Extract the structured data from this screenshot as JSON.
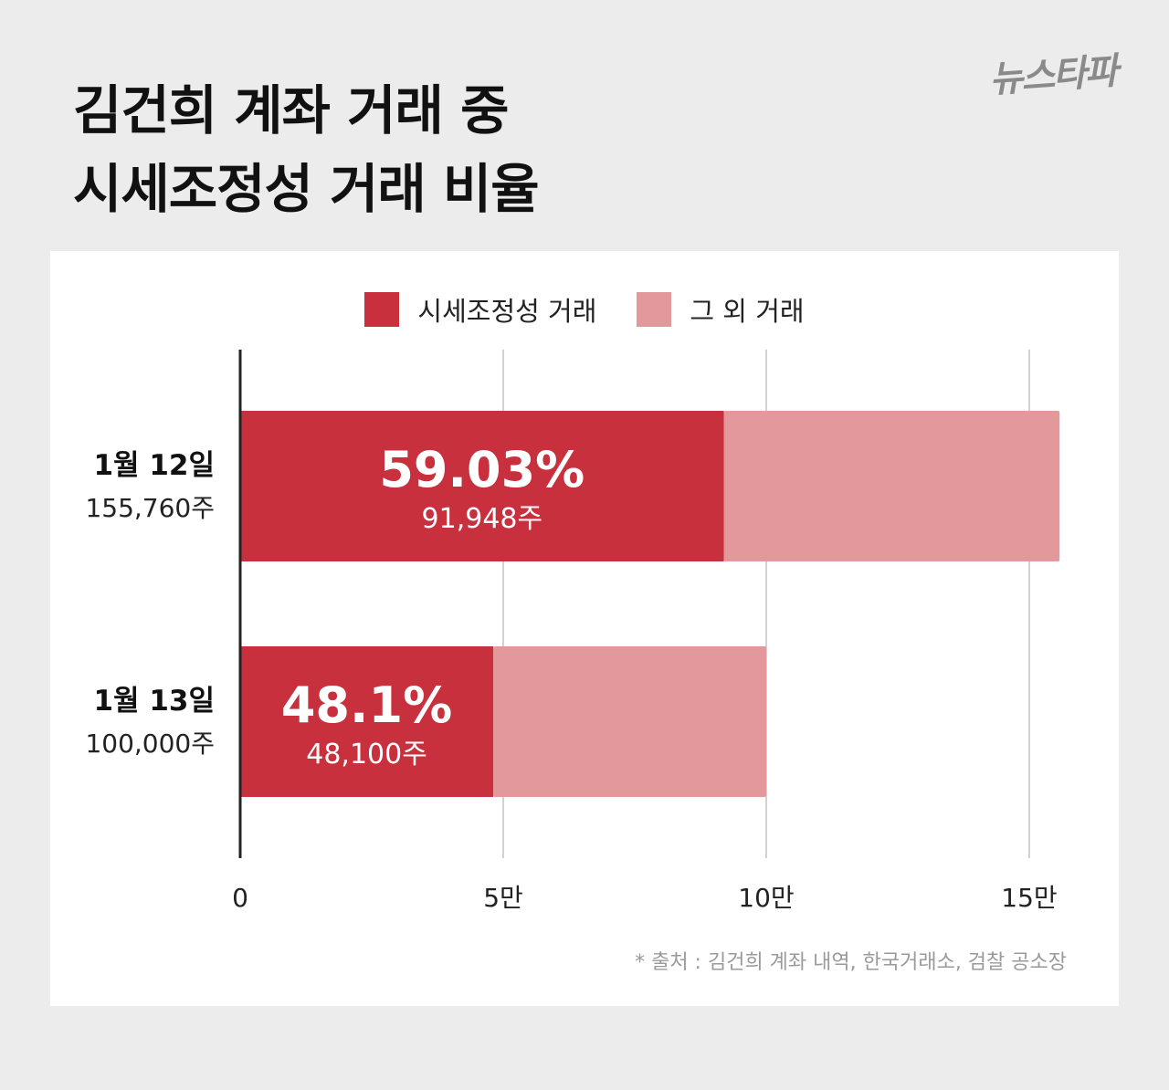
{
  "title_lines": [
    "김건희 계좌 거래 중",
    "시세조정성 거래 비율"
  ],
  "logo_text": "뉴스타파",
  "source_note": "* 출처 : 김건희 계좌 내역, 한국거래소, 검찰 공소장",
  "legend": [
    {
      "label": "시세조정성 거래",
      "color": "#c8303e"
    },
    {
      "label": "그 외 거래",
      "color": "#e3999c"
    }
  ],
  "chart_data": {
    "type": "bar",
    "orientation": "horizontal",
    "stacked": true,
    "categories": [
      "1월 12일",
      "1월 13일"
    ],
    "category_totals": [
      "155,760주",
      "100,000주"
    ],
    "totals": [
      155760,
      100000
    ],
    "series": [
      {
        "name": "시세조정성 거래",
        "values": [
          91948,
          48100
        ],
        "color": "#c8303e"
      },
      {
        "name": "그 외 거래",
        "values": [
          63812,
          51900
        ],
        "color": "#e3999c"
      }
    ],
    "data_labels": [
      {
        "percent": "59.03%",
        "shares": "91,948주"
      },
      {
        "percent": "48.1%",
        "shares": "48,100주"
      }
    ],
    "x_ticks": [
      0,
      50000,
      100000,
      150000
    ],
    "x_tick_labels": [
      "0",
      "5만",
      "10만",
      "15만"
    ],
    "xlim": [
      0,
      150000
    ],
    "grid": true
  }
}
